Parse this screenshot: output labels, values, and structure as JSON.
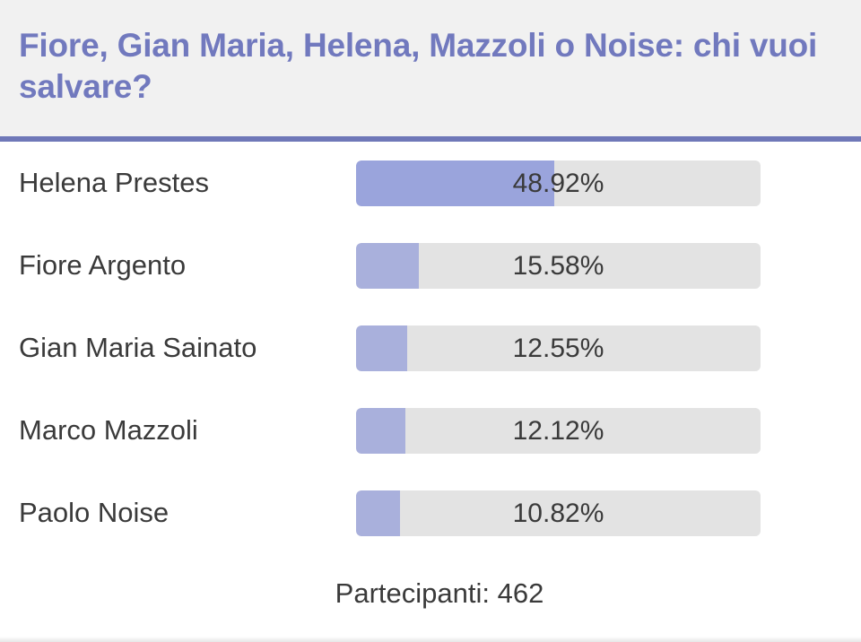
{
  "poll": {
    "title": "Fiore, Gian Maria, Helena, Mazzoli o Noise: chi vuoi salvare?",
    "accent_color": "#6f78b8",
    "options": [
      {
        "label": "Helena Prestes",
        "percent_text": "48.92%",
        "fraction": 0.4892,
        "leading": true
      },
      {
        "label": "Fiore Argento",
        "percent_text": "15.58%",
        "fraction": 0.1558,
        "leading": false
      },
      {
        "label": "Gian Maria Sainato",
        "percent_text": "12.55%",
        "fraction": 0.1255,
        "leading": false
      },
      {
        "label": "Marco Mazzoli",
        "percent_text": "12.12%",
        "fraction": 0.1212,
        "leading": false
      },
      {
        "label": "Paolo Noise",
        "percent_text": "10.82%",
        "fraction": 0.1082,
        "leading": false
      }
    ],
    "participants_label": "Partecipanti: 462"
  }
}
